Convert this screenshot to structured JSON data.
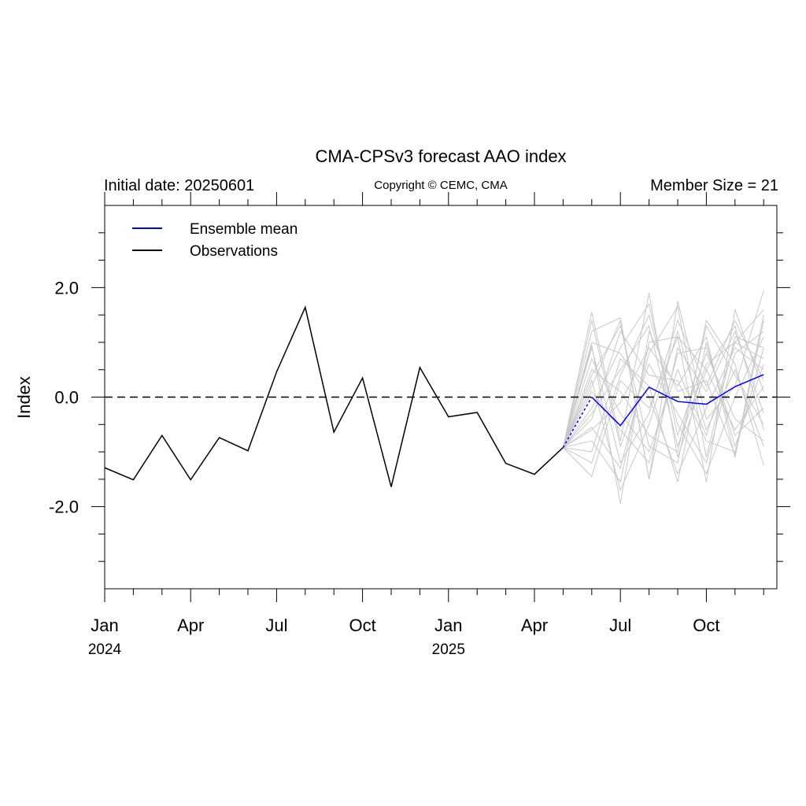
{
  "chart_data": {
    "type": "line",
    "title": "CMA-CPSv3 forecast AAO index",
    "subtitle_left": "Initial date: 20250601",
    "subtitle_center": "Copyright © CEMC, CMA",
    "subtitle_right": "Member Size = 21",
    "ylabel": "Index",
    "xlabel": "",
    "ylim": [
      -3.5,
      3.5
    ],
    "y_major_ticks": [
      -2.0,
      0.0,
      2.0
    ],
    "y_major_tick_labels": [
      "-2.0",
      "0.0",
      "2.0"
    ],
    "y_minor_step": 0.5,
    "xlim": [
      "2024-01",
      "2025-12"
    ],
    "x_tick_months": [
      "2024-01",
      "2024-04",
      "2024-07",
      "2024-10",
      "2025-01",
      "2025-04",
      "2025-07",
      "2025-10"
    ],
    "x_tick_labels": [
      "Jan",
      "Apr",
      "Jul",
      "Oct",
      "Jan",
      "Apr",
      "Jul",
      "Oct"
    ],
    "x_year_labels": [
      {
        "month": "2024-01",
        "label": "2024"
      },
      {
        "month": "2025-01",
        "label": "2025"
      }
    ],
    "reference_line": {
      "y": 0.0,
      "style": "dashed"
    },
    "grid": false,
    "legend_placement": "top-left",
    "legend": [
      {
        "label": "Ensemble mean",
        "color": "#0000ff"
      },
      {
        "label": "Observations",
        "color": "#000000"
      }
    ],
    "series": [
      {
        "name": "Observations",
        "color": "#000000",
        "x": [
          "2024-01",
          "2024-02",
          "2024-03",
          "2024-04",
          "2024-05",
          "2024-06",
          "2024-07",
          "2024-08",
          "2024-09",
          "2024-10",
          "2024-11",
          "2024-12",
          "2025-01",
          "2025-02",
          "2025-03",
          "2025-04",
          "2025-05"
        ],
        "values": [
          -1.29,
          -1.51,
          -0.7,
          -1.51,
          -0.74,
          -0.98,
          0.46,
          1.64,
          -0.64,
          0.35,
          -1.64,
          0.54,
          -0.36,
          -0.28,
          -1.21,
          -1.41,
          -0.92
        ]
      },
      {
        "name": "Ensemble mean",
        "color": "#0000ff",
        "x": [
          "2025-05",
          "2025-06",
          "2025-07",
          "2025-08",
          "2025-09",
          "2025-10",
          "2025-11",
          "2025-12"
        ],
        "values": [
          -0.92,
          0.0,
          -0.52,
          0.18,
          -0.08,
          -0.13,
          0.19,
          0.41
        ]
      }
    ],
    "members": {
      "color": "#c8c8c8",
      "x": [
        "2025-05",
        "2025-06",
        "2025-07",
        "2025-08",
        "2025-09",
        "2025-10",
        "2025-11",
        "2025-12"
      ],
      "values": [
        [
          -0.92,
          1.55,
          -0.8,
          1.9,
          -1.1,
          0.5,
          1.3,
          -0.6
        ],
        [
          -0.92,
          1.2,
          1.45,
          -1.5,
          1.75,
          -0.4,
          0.2,
          1.95
        ],
        [
          -0.92,
          -1.45,
          0.3,
          -0.2,
          1.1,
          -1.55,
          1.6,
          0.1
        ],
        [
          -0.92,
          0.95,
          -1.95,
          1.2,
          0.1,
          0.3,
          -1.05,
          1.5
        ],
        [
          -0.92,
          0.4,
          1.3,
          -0.9,
          -1.2,
          1.4,
          0.6,
          -1.25
        ],
        [
          -0.92,
          -0.55,
          -1.3,
          0.8,
          1.65,
          -1.1,
          1.1,
          0.9
        ],
        [
          -0.92,
          -0.2,
          0.9,
          1.7,
          -0.7,
          0.8,
          -0.4,
          -0.8
        ],
        [
          -0.92,
          0.7,
          -0.3,
          -1.0,
          0.5,
          -0.7,
          1.0,
          1.6
        ],
        [
          -0.92,
          -1.0,
          0.7,
          0.2,
          -1.55,
          1.0,
          -0.9,
          0.6
        ],
        [
          -0.92,
          0.2,
          1.4,
          -1.5,
          0.9,
          0.1,
          1.2,
          -0.3
        ],
        [
          -0.92,
          1.4,
          -0.9,
          0.6,
          -0.3,
          -1.2,
          0.8,
          1.2
        ],
        [
          -0.92,
          -0.8,
          -1.55,
          1.0,
          1.1,
          0.5,
          -0.6,
          0.2
        ],
        [
          -0.92,
          0.5,
          0.1,
          -0.7,
          -1.0,
          1.3,
          0.4,
          -0.5
        ],
        [
          -0.92,
          -0.4,
          1.2,
          0.4,
          0.3,
          -0.8,
          -1.0,
          0.9
        ],
        [
          -0.92,
          0.9,
          -1.2,
          -0.3,
          1.4,
          0.2,
          1.4,
          0.3
        ],
        [
          -0.92,
          -1.2,
          0.4,
          1.5,
          -0.5,
          -1.4,
          0.0,
          1.1
        ],
        [
          -0.92,
          0.1,
          -0.6,
          -1.2,
          0.8,
          0.9,
          -0.7,
          -0.2
        ],
        [
          -0.92,
          1.0,
          0.8,
          0.0,
          -1.4,
          -0.2,
          0.9,
          0.5
        ],
        [
          -0.92,
          -0.6,
          -0.1,
          0.9,
          0.2,
          1.1,
          -1.1,
          1.4
        ],
        [
          -0.92,
          0.3,
          -1.7,
          -0.5,
          1.2,
          -0.6,
          0.5,
          -0.9
        ],
        [
          -0.92,
          -0.3,
          0.5,
          1.3,
          -0.9,
          0.6,
          1.0,
          0.7
        ]
      ]
    }
  }
}
